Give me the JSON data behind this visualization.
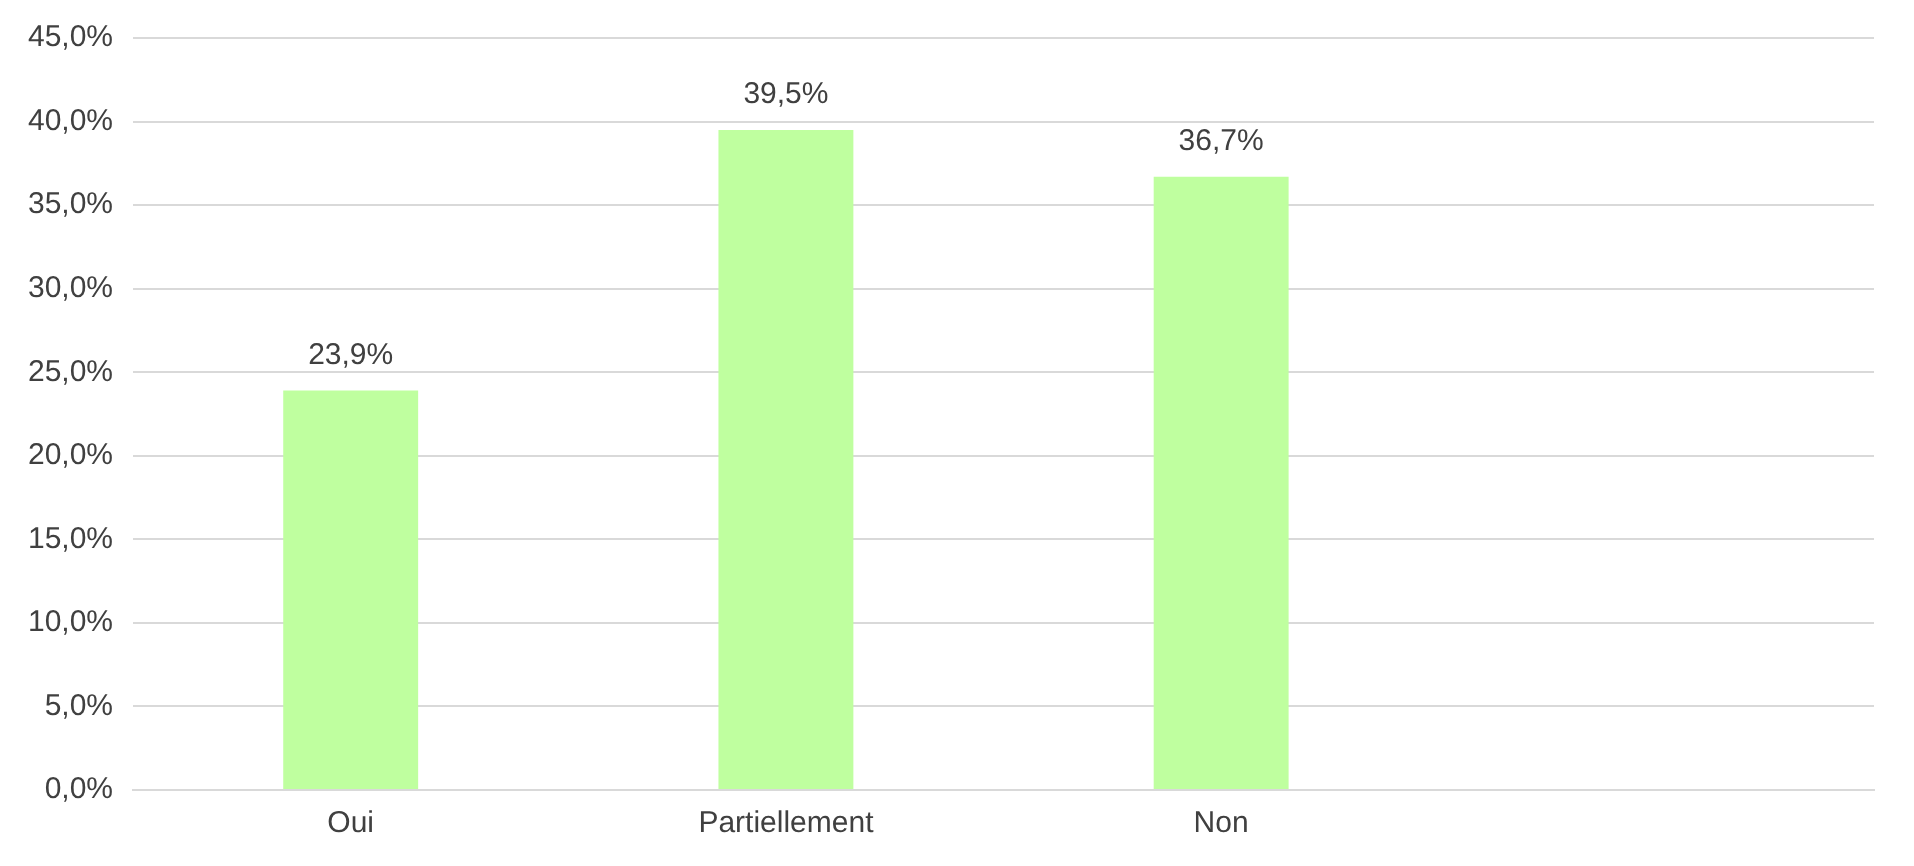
{
  "chart_data": {
    "type": "bar",
    "categories": [
      "Oui",
      "Partiellement",
      "Non",
      null
    ],
    "values": [
      23.9,
      39.5,
      36.7,
      null
    ],
    "color": "#bfff9f",
    "value_labels": [
      "23,9%",
      "39,5%",
      "36,7%",
      null
    ],
    "ylim": [
      0,
      45
    ],
    "yticks": [
      {
        "value": 0,
        "label": "0,0%"
      },
      {
        "value": 5,
        "label": "5,0%"
      },
      {
        "value": 10,
        "label": "10,0%"
      },
      {
        "value": 15,
        "label": "15,0%"
      },
      {
        "value": 20,
        "label": "20,0%"
      },
      {
        "value": 25,
        "label": "25,0%"
      },
      {
        "value": 30,
        "label": "30,0%"
      },
      {
        "value": 35,
        "label": "35,0%"
      },
      {
        "value": 40,
        "label": "40,0%"
      },
      {
        "value": 45,
        "label": "45,0%"
      }
    ],
    "grid": "y",
    "legend": false
  }
}
